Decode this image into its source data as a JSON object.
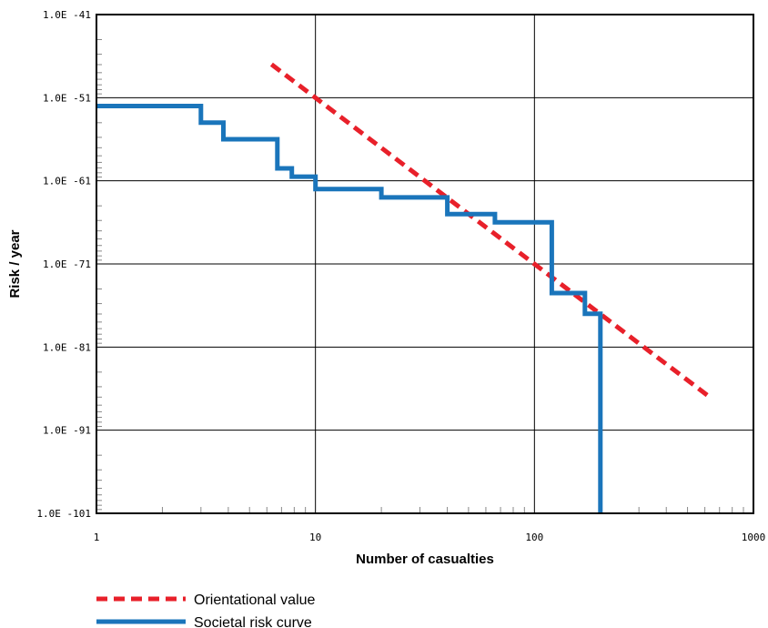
{
  "chart_data": {
    "type": "line",
    "xlabel": "Number of casualties",
    "ylabel": "Risk / year",
    "x_scale": "log",
    "y_scale": "log",
    "xlim": [
      1,
      1000
    ],
    "x_ticks": [
      "1",
      "10",
      "100",
      "1000"
    ],
    "y_ticks": [
      "1.0E -41",
      "1.0E -51",
      "1.0E -61",
      "1.0E -71",
      "1.0E -81",
      "1.0E -91",
      "1.0E -101"
    ],
    "grid": true,
    "legend_position": "bottom-left",
    "series": [
      {
        "name": "Orientational value",
        "style": "dashed",
        "color": "#e8202a",
        "x": [
          6.3,
          630
        ],
        "y_decades_below_top": [
          0.6,
          4.6
        ]
      },
      {
        "name": "Societal risk curve",
        "style": "step",
        "color": "#1a75bb",
        "x": [
          1,
          3,
          3,
          3.8,
          3.8,
          6.7,
          6.7,
          7.8,
          7.8,
          10,
          10,
          20,
          20,
          40,
          40,
          66,
          66,
          120,
          120,
          170,
          170,
          200,
          200
        ],
        "y_decades_below_top": [
          1.1,
          1.1,
          1.3,
          1.3,
          1.5,
          1.5,
          1.85,
          1.85,
          1.95,
          1.95,
          2.1,
          2.1,
          2.2,
          2.2,
          2.4,
          2.4,
          2.5,
          2.5,
          3.35,
          3.35,
          3.6,
          3.6,
          6.0
        ]
      }
    ]
  }
}
